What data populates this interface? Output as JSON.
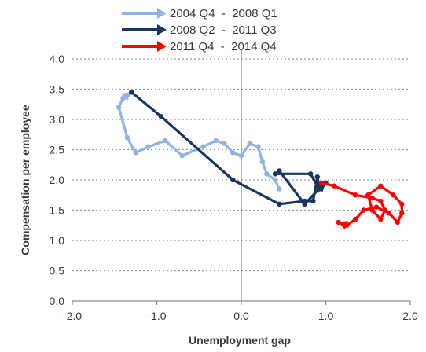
{
  "chart_data": {
    "type": "line",
    "title": "",
    "xlabel": "Unemployment gap",
    "ylabel": "Compensation per employee",
    "xlim": [
      -2.0,
      2.0
    ],
    "ylim": [
      0.0,
      4.0
    ],
    "x_ticks": [
      "-2.0",
      "-1.0",
      "0.0",
      "1.0",
      "2.0"
    ],
    "y_ticks": [
      "0.0",
      "0.5",
      "1.0",
      "1.5",
      "2.0",
      "2.5",
      "3.0",
      "3.5",
      "4.0"
    ],
    "grid": "horizontal dotted",
    "legend_position": "top",
    "series": [
      {
        "name": "2004 Q4  -  2008 Q1",
        "color": "#8fb4e3",
        "points": [
          [
            0.45,
            1.85
          ],
          [
            0.4,
            2.0
          ],
          [
            0.3,
            2.1
          ],
          [
            0.25,
            2.3
          ],
          [
            0.2,
            2.55
          ],
          [
            0.1,
            2.6
          ],
          [
            0.0,
            2.4
          ],
          [
            -0.1,
            2.45
          ],
          [
            -0.2,
            2.6
          ],
          [
            -0.3,
            2.65
          ],
          [
            -0.45,
            2.55
          ],
          [
            -0.7,
            2.4
          ],
          [
            -0.9,
            2.65
          ],
          [
            -1.1,
            2.55
          ],
          [
            -1.25,
            2.45
          ],
          [
            -1.35,
            2.7
          ],
          [
            -1.45,
            3.2
          ],
          [
            -1.4,
            3.35
          ],
          [
            -1.3,
            3.45
          ]
        ]
      },
      {
        "name": "2008 Q2  -  2011 Q3",
        "color": "#17375e",
        "points": [
          [
            -1.3,
            3.45
          ],
          [
            -0.95,
            3.05
          ],
          [
            -0.1,
            2.0
          ],
          [
            0.45,
            1.6
          ],
          [
            0.75,
            1.65
          ],
          [
            0.85,
            1.65
          ],
          [
            0.9,
            2.05
          ],
          [
            0.92,
            1.85
          ],
          [
            0.82,
            2.1
          ],
          [
            0.4,
            2.1
          ],
          [
            0.45,
            2.15
          ],
          [
            0.75,
            1.6
          ],
          [
            0.92,
            1.85
          ],
          [
            1.0,
            1.95
          ]
        ]
      },
      {
        "name": "2011 Q4  -  2014 Q4",
        "color": "#ff0000",
        "points": [
          [
            0.95,
            1.95
          ],
          [
            1.1,
            1.9
          ],
          [
            1.35,
            1.75
          ],
          [
            1.55,
            1.7
          ],
          [
            1.65,
            1.65
          ],
          [
            1.7,
            1.5
          ],
          [
            1.65,
            1.35
          ],
          [
            1.55,
            1.5
          ],
          [
            1.5,
            1.75
          ],
          [
            1.65,
            1.9
          ],
          [
            1.8,
            1.75
          ],
          [
            1.9,
            1.6
          ],
          [
            1.9,
            1.45
          ],
          [
            1.85,
            1.3
          ],
          [
            1.75,
            1.45
          ],
          [
            1.6,
            1.55
          ],
          [
            1.45,
            1.5
          ],
          [
            1.35,
            1.35
          ],
          [
            1.25,
            1.25
          ],
          [
            1.15,
            1.3
          ]
        ]
      }
    ]
  }
}
